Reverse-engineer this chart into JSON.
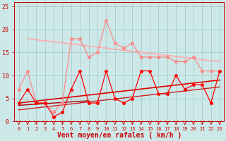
{
  "bg_color": "#cce8e8",
  "grid_color": "#aacccc",
  "xlabel": "Vent moyen/en rafales ( km/h )",
  "ylim": [
    0,
    26
  ],
  "xlim": [
    -0.5,
    23.5
  ],
  "yticks": [
    0,
    5,
    10,
    15,
    20,
    25
  ],
  "xticks": [
    0,
    1,
    2,
    3,
    4,
    5,
    6,
    7,
    8,
    9,
    10,
    11,
    12,
    13,
    14,
    15,
    16,
    17,
    18,
    19,
    20,
    21,
    22,
    23
  ],
  "series_avg": {
    "color": "#ff0000",
    "linewidth": 0.9,
    "marker": "*",
    "markersize": 3.5,
    "values": [
      4,
      7,
      4,
      4,
      1,
      2,
      7,
      11,
      4,
      4,
      11,
      5,
      4,
      5,
      11,
      11,
      6,
      6,
      10,
      7,
      8,
      8,
      4,
      11
    ]
  },
  "series_gust": {
    "color": "#ff8888",
    "linewidth": 0.9,
    "marker": "*",
    "markersize": 3.5,
    "values": [
      7,
      11,
      4,
      4,
      2,
      4,
      18,
      18,
      14,
      15,
      22,
      17,
      16,
      17,
      14,
      14,
      14,
      14,
      13,
      13,
      14,
      11,
      11,
      11
    ]
  },
  "trend_gust_line": {
    "color": "#ffaaaa",
    "linewidth": 1.2,
    "x": [
      1,
      23
    ],
    "y": [
      18,
      13
    ]
  },
  "trend_avg_main": {
    "color": "#dd0000",
    "linewidth": 1.2,
    "x": [
      0,
      23
    ],
    "y": [
      4,
      9
    ]
  },
  "trend_avg_low1": {
    "color": "#aa0000",
    "linewidth": 1.0,
    "x": [
      0,
      8
    ],
    "y": [
      3.5,
      4.5
    ]
  },
  "trend_avg_low2": {
    "color": "#cc2222",
    "linewidth": 1.0,
    "x": [
      0,
      23
    ],
    "y": [
      2.5,
      7.5
    ]
  },
  "tick_color": "#cc0000",
  "axis_color": "#cc0000",
  "xlabel_color": "#cc0000",
  "xlabel_fontsize": 7,
  "xlabel_fontweight": "bold",
  "tick_fontsize_x": 5,
  "tick_fontsize_y": 6
}
